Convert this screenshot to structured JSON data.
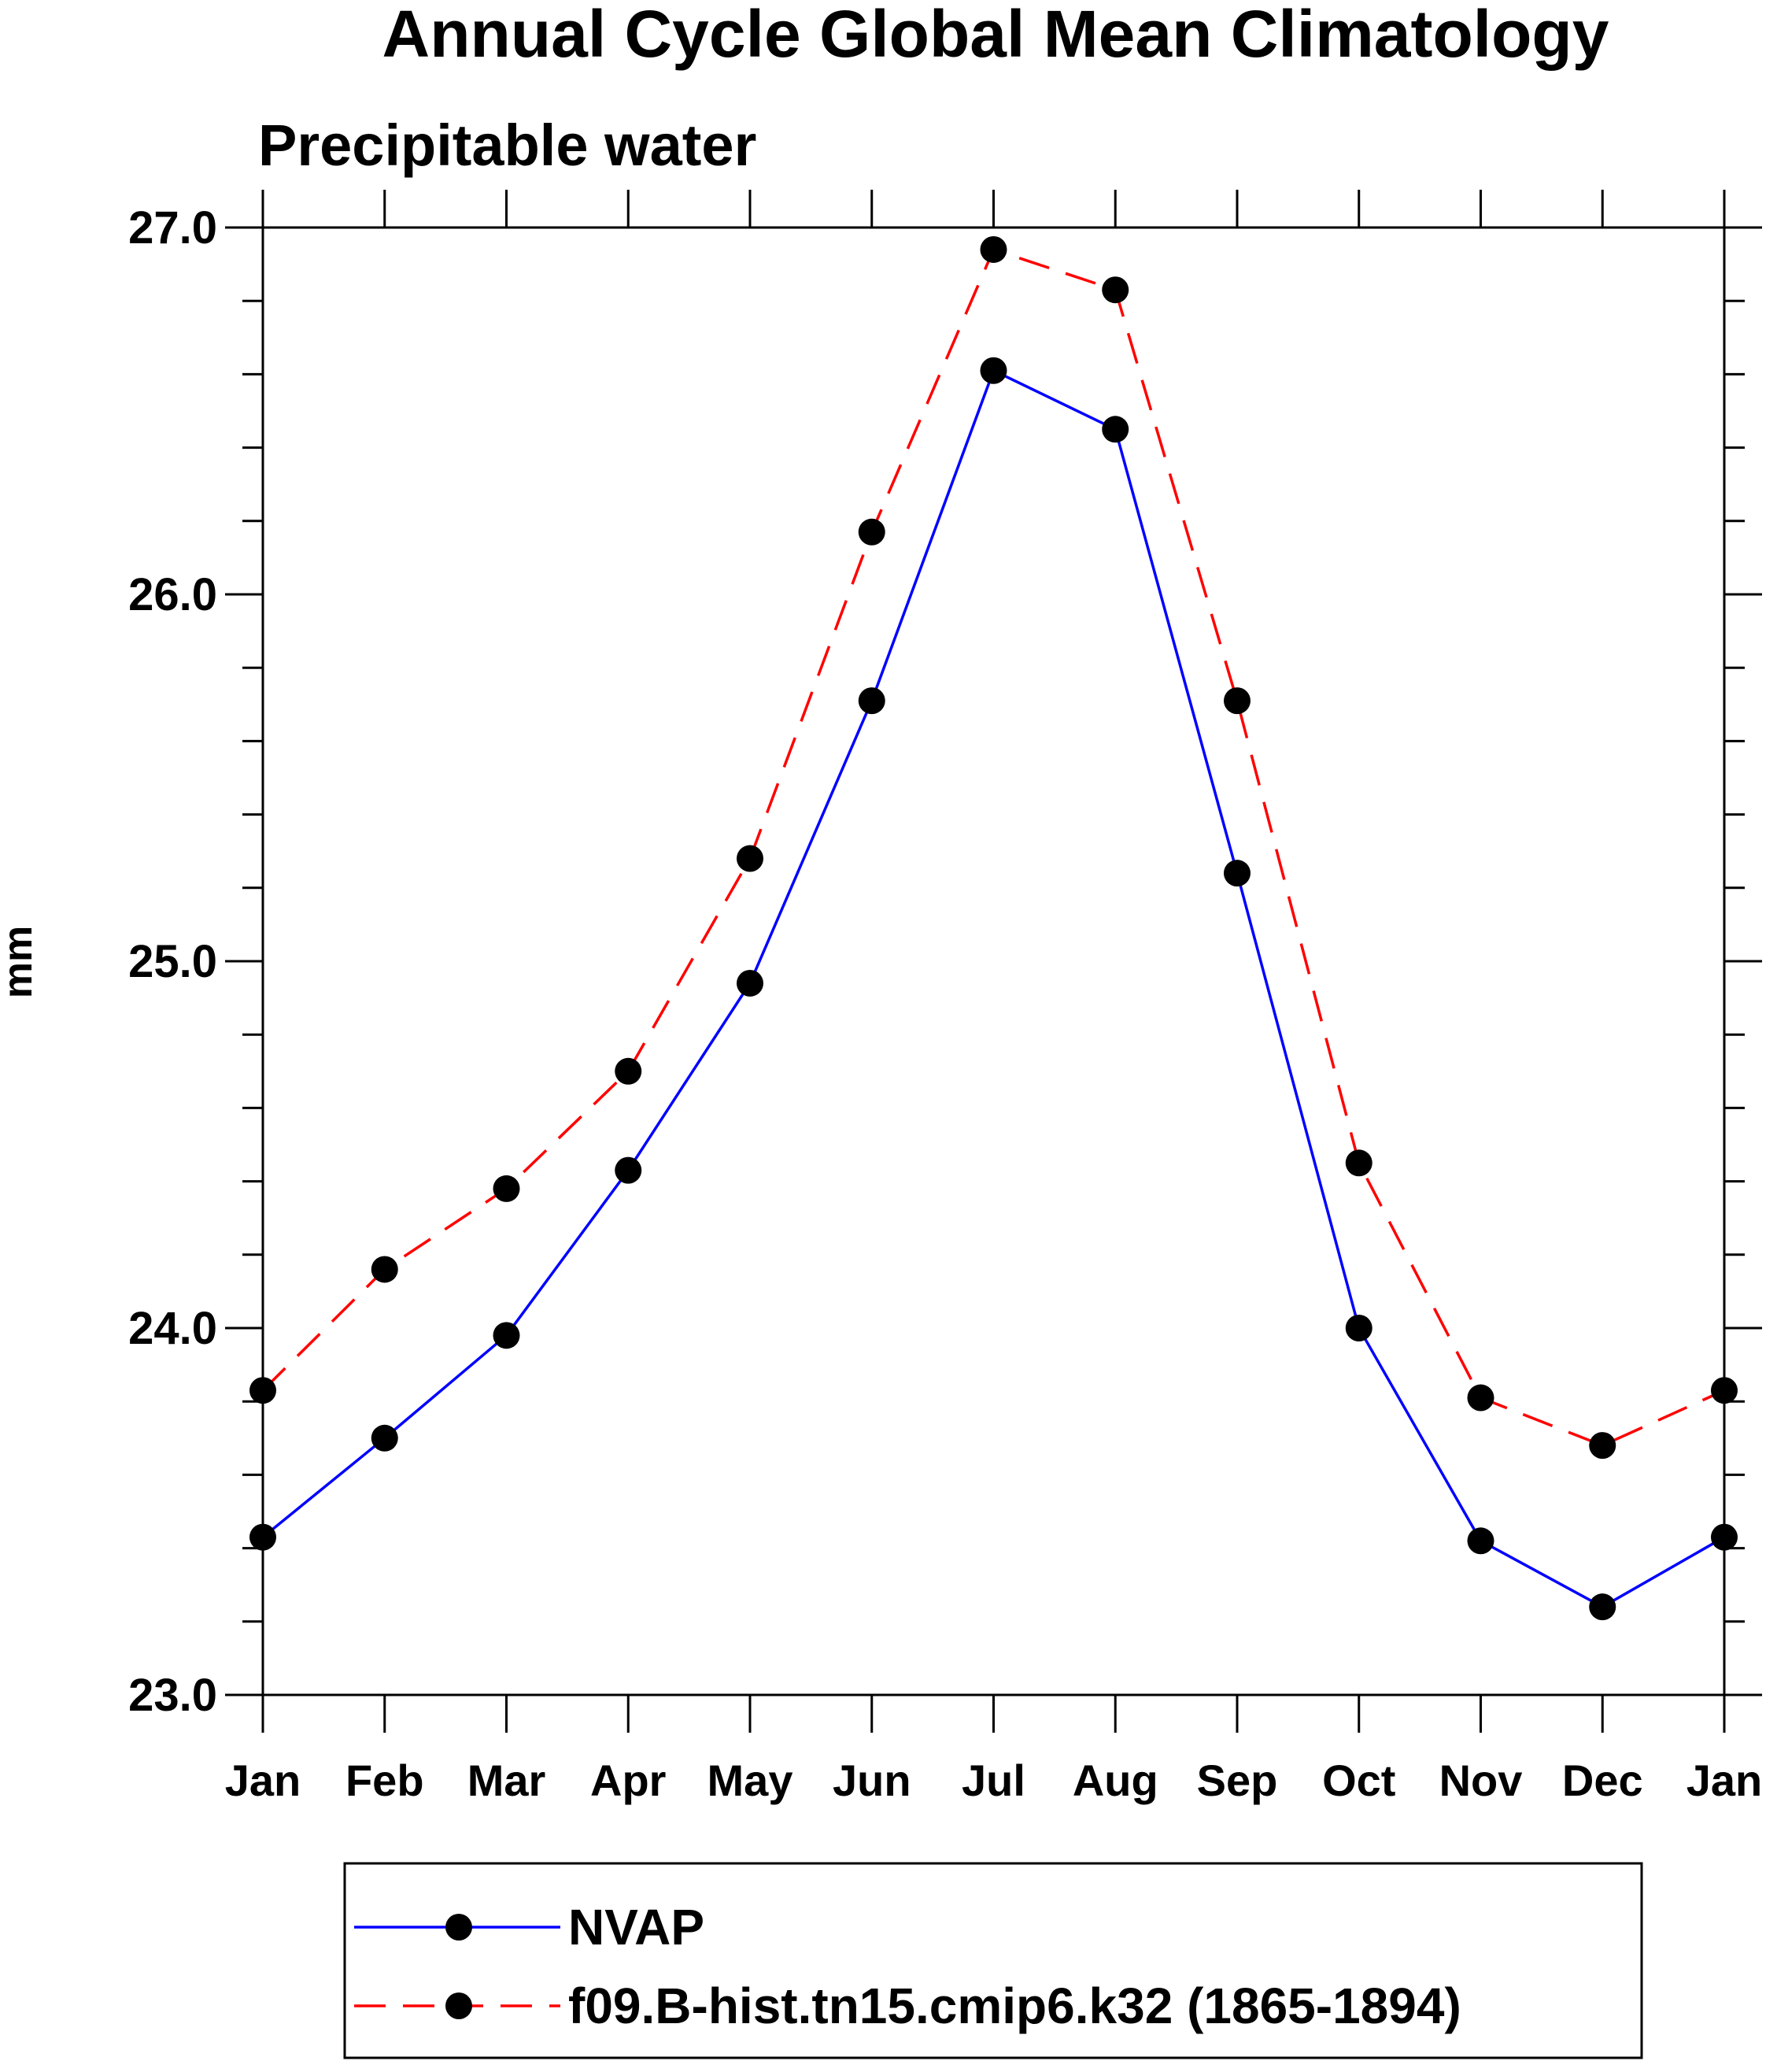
{
  "chart_data": {
    "type": "line",
    "title": "Annual Cycle Global Mean Climatology",
    "subtitle": "Precipitable water",
    "xlabel": "",
    "ylabel": "mm",
    "categories": [
      "Jan",
      "Feb",
      "Mar",
      "Apr",
      "May",
      "Jun",
      "Jul",
      "Aug",
      "Sep",
      "Oct",
      "Nov",
      "Dec",
      "Jan"
    ],
    "ylim": [
      23.0,
      27.0
    ],
    "yticks": [
      "23.0",
      "24.0",
      "25.0",
      "26.0",
      "27.0"
    ],
    "ytick_values": [
      23.0,
      24.0,
      25.0,
      26.0,
      27.0
    ],
    "yminor_step": 0.2,
    "grid": false,
    "legend_placement": "bottom",
    "series": [
      {
        "name": "NVAP",
        "color": "#0000ff",
        "dash": "solid",
        "values": [
          23.43,
          23.7,
          23.98,
          24.43,
          24.94,
          25.71,
          26.61,
          26.45,
          25.24,
          24.0,
          23.42,
          23.24,
          23.43
        ]
      },
      {
        "name": "f09.B-hist.tn15.cmip6.k32 (1865-1894)",
        "color": "#ff0000",
        "dash": "dashed",
        "values": [
          23.83,
          24.16,
          24.38,
          24.7,
          25.28,
          26.17,
          26.94,
          26.83,
          25.71,
          24.45,
          23.81,
          23.68,
          23.83
        ]
      }
    ]
  }
}
